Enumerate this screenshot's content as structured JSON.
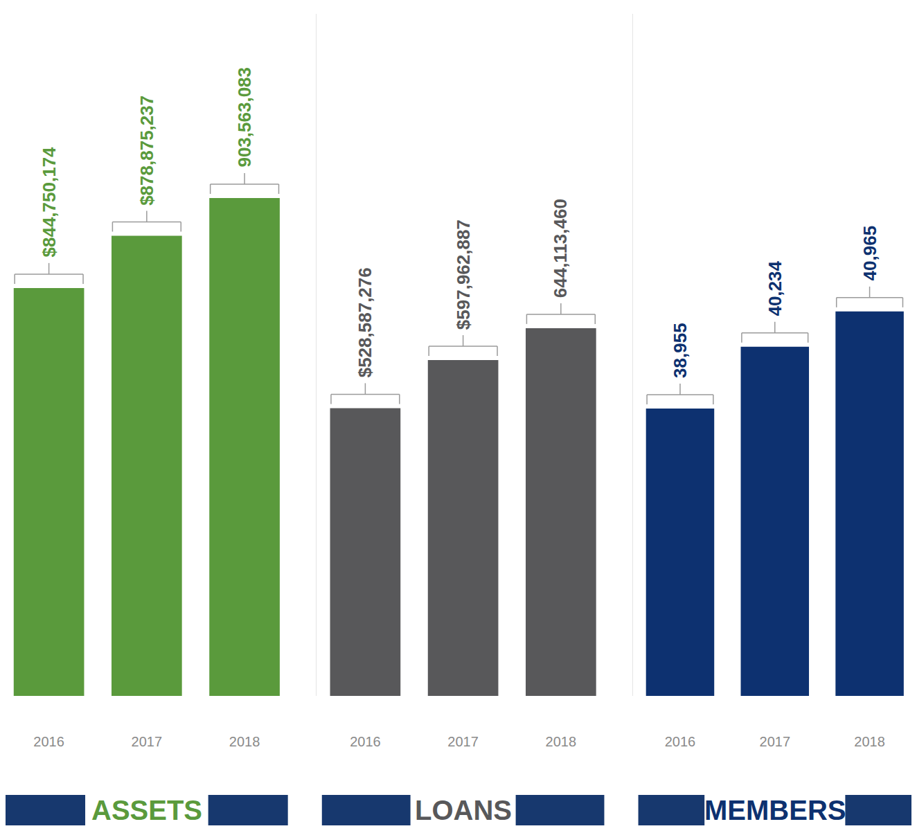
{
  "chart_data": [
    {
      "type": "bar",
      "title": "ASSETS",
      "categories": [
        "2016",
        "2017",
        "2018"
      ],
      "values": [
        844750174,
        878875237,
        903563083
      ],
      "value_labels": [
        "$844,750,174",
        "$878,875,237",
        "903,563,083"
      ],
      "color": "#5a9a3c",
      "ylim": [
        578000000,
        1024000000
      ],
      "data_labels": true,
      "tick_labels": "x"
    },
    {
      "type": "bar",
      "title": "LOANS",
      "categories": [
        "2016",
        "2017",
        "2018"
      ],
      "values": [
        528587276,
        597962887,
        644113460
      ],
      "value_labels": [
        "$528,587,276",
        "$597,962,887",
        "644,113,460"
      ],
      "color": "#58585a",
      "ylim": [
        113000000,
        1098000000
      ],
      "data_labels": true,
      "tick_labels": "x"
    },
    {
      "type": "bar",
      "title": "MEMBERS",
      "categories": [
        "2016",
        "2017",
        "2018"
      ],
      "values": [
        38955,
        40234,
        40965
      ],
      "value_labels": [
        "38,955",
        "40,234",
        "40,965"
      ],
      "color": "#0d3170",
      "ylim": [
        33000,
        47132
      ],
      "data_labels": true,
      "tick_labels": "x"
    }
  ]
}
